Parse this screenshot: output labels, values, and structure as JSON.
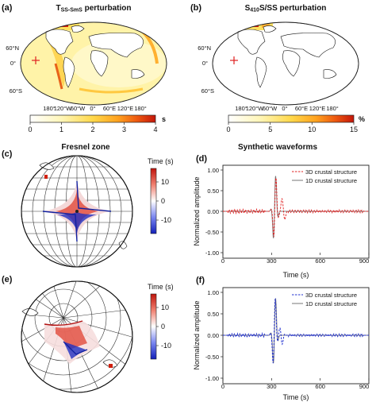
{
  "panels": {
    "a": {
      "letter": "(a)",
      "title_main": "T",
      "title_sub": "SS-SmS",
      "title_rest": " perturbation",
      "lat_labels": [
        "60°N",
        "0°",
        "60°S"
      ],
      "lon_labels": [
        "180°",
        "120°W",
        "60°W",
        "0°",
        "60°E",
        "120°E",
        "180°"
      ],
      "cbar_ticks": [
        "0",
        "1",
        "2",
        "3",
        "4"
      ],
      "cbar_unit": "s",
      "cbar_colors": [
        "#ffffff",
        "#fff9c8",
        "#ffe36e",
        "#ffb52e",
        "#f06e12",
        "#c81e0c"
      ]
    },
    "b": {
      "letter": "(b)",
      "title_main": "S",
      "title_sub": "410",
      "title_rest": "S/SS perturbation",
      "lat_labels": [
        "60°N",
        "0°",
        "60°S"
      ],
      "lon_labels": [
        "180°",
        "120°W",
        "60°W",
        "0°",
        "60°E",
        "120°E",
        "180°"
      ],
      "cbar_ticks": [
        "0",
        "5",
        "10",
        "15"
      ],
      "cbar_unit": "%",
      "cbar_colors": [
        "#ffffff",
        "#fff9c8",
        "#ffe36e",
        "#ffb52e",
        "#f06e12",
        "#c81e0c"
      ]
    },
    "c": {
      "letter": "(c)",
      "title": "Fresnel zone",
      "cbar_label": "Time (s)",
      "cbar_ticks": [
        "10",
        "0",
        "-10"
      ]
    },
    "d": {
      "letter": "(d)",
      "title": "Synthetic waveforms",
      "ylabel": "Normalized amplitude",
      "xlabel": "Time (s)",
      "legend": [
        {
          "label": "3D crustal structure",
          "color": "#e02020"
        },
        {
          "label": "1D crustal structure",
          "color": "#777777"
        }
      ]
    },
    "e": {
      "letter": "(e)",
      "cbar_label": "Time (s)",
      "cbar_ticks": [
        "10",
        "0",
        "-10"
      ]
    },
    "f": {
      "letter": "(f)",
      "ylabel": "Normalized amplitude",
      "xlabel": "Time (s)",
      "legend": [
        {
          "label": "3D crustal structure",
          "color": "#2030d0"
        },
        {
          "label": "1D crustal structure",
          "color": "#777777"
        }
      ]
    }
  },
  "chart_data": [
    {
      "type": "line",
      "panel": "d",
      "xlim": [
        0,
        900
      ],
      "ylim": [
        -1.0,
        1.0
      ],
      "xticks": [
        "0",
        "300",
        "600",
        "900"
      ],
      "yticks": [
        "1.00",
        "0.50",
        "0.00",
        "-0.50",
        "-1.00"
      ],
      "series": [
        {
          "name": "3D crustal structure",
          "style": "dashed",
          "color": "#e02020"
        },
        {
          "name": "1D crustal structure",
          "style": "solid",
          "color": "#777777"
        }
      ]
    },
    {
      "type": "line",
      "panel": "f",
      "xlim": [
        0,
        900
      ],
      "ylim": [
        -1.0,
        1.0
      ],
      "xticks": [
        "0",
        "300",
        "600",
        "900"
      ],
      "yticks": [
        "1.00",
        "0.50",
        "0.00",
        "-0.50",
        "-1.00"
      ],
      "series": [
        {
          "name": "3D crustal structure",
          "style": "dashed",
          "color": "#2030d0"
        },
        {
          "name": "1D crustal structure",
          "style": "solid",
          "color": "#777777"
        }
      ]
    }
  ]
}
